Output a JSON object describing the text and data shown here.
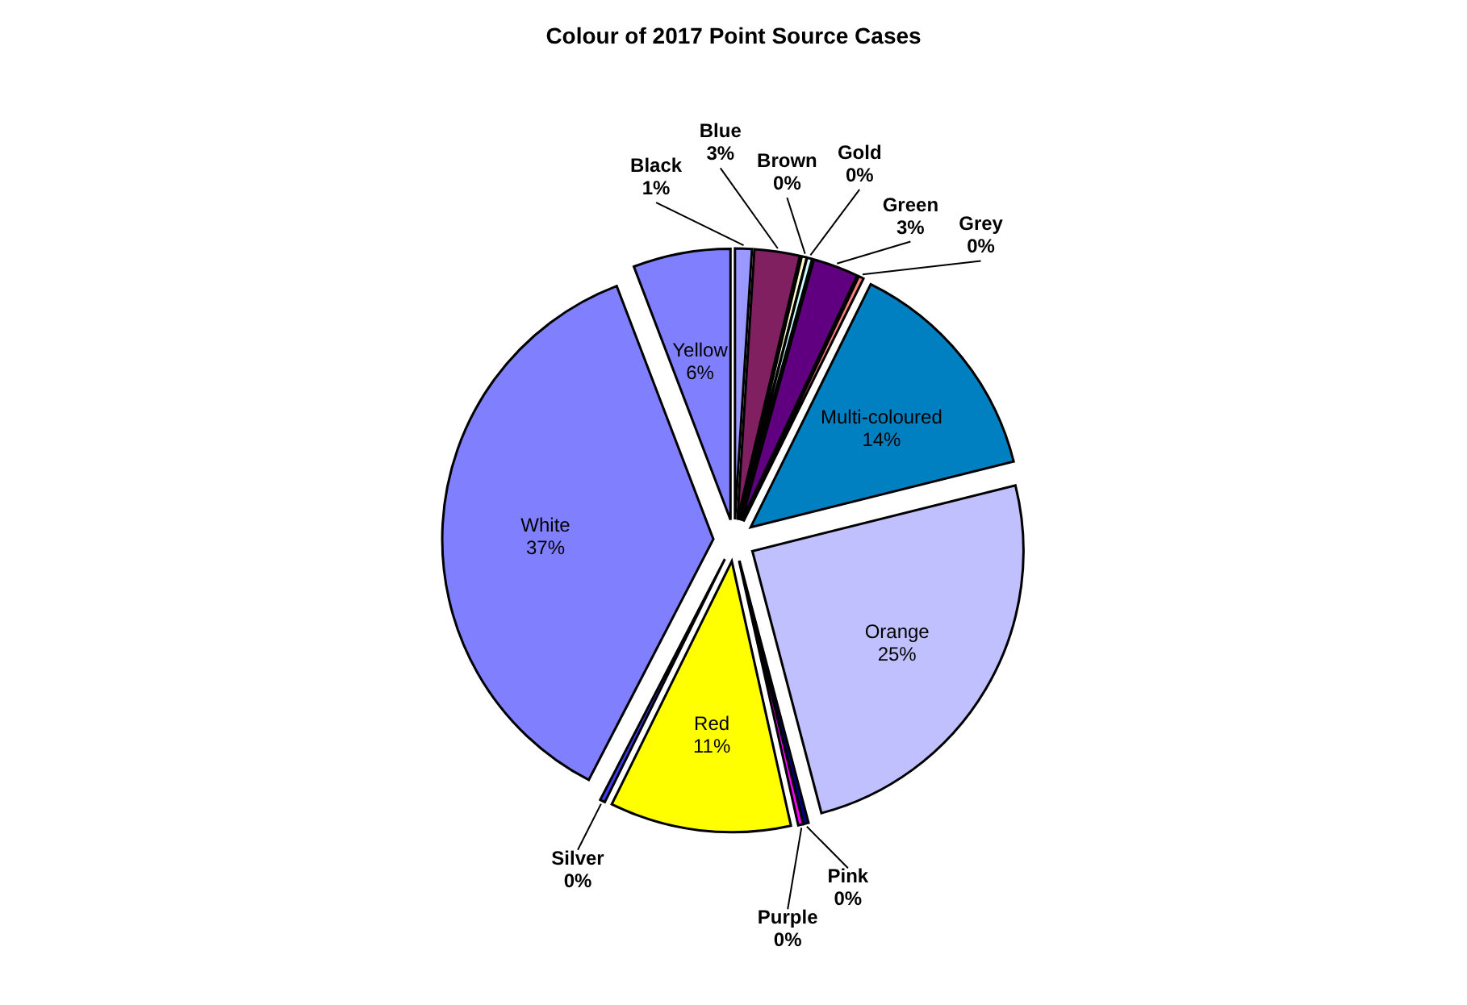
{
  "chart_data": {
    "type": "pie",
    "title": "Colour of 2017 Point Source Cases",
    "categories": [
      "Black",
      "Blue",
      "Brown",
      "Gold",
      "Green",
      "Grey",
      "Multi-coloured",
      "Orange",
      "Pink",
      "Purple",
      "Red",
      "Silver",
      "White",
      "Yellow"
    ],
    "values": [
      1,
      2.7,
      0.3,
      0.3,
      2.7,
      0.3,
      13.8,
      24.8,
      0.3,
      0.3,
      10.8,
      0.3,
      36.6,
      5.8
    ],
    "value_labels": [
      "1%",
      "3%",
      "0%",
      "0%",
      "3%",
      "0%",
      "14%",
      "25%",
      "0%",
      "0%",
      "11%",
      "0%",
      "37%",
      "6%"
    ],
    "colors": [
      "#9999ff",
      "#802060",
      "#ffffcc",
      "#ccffff",
      "#600080",
      "#ff8080",
      "#0080c0",
      "#c0c0ff",
      "#000080",
      "#ff00ff",
      "#ffff00",
      "#4040ff",
      "#8080ff",
      "#8080ff"
    ]
  }
}
